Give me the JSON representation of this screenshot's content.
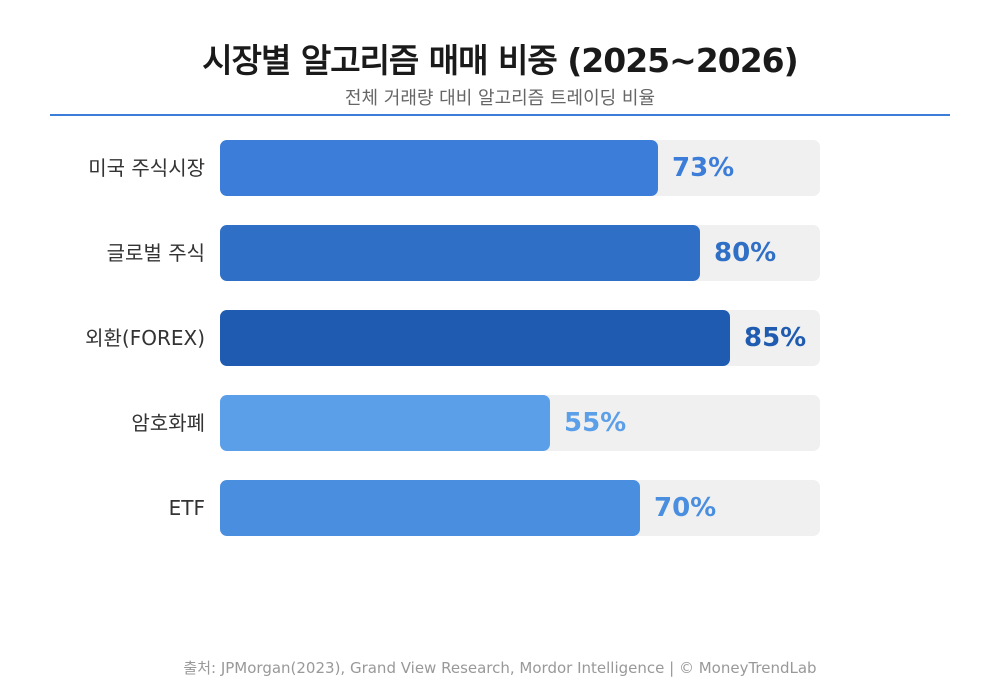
{
  "chart_data": {
    "type": "bar",
    "orientation": "horizontal",
    "title": "시장별 알고리즘 매매 비중 (2025~2026)",
    "subtitle": "전체 거래량 대비 알고리즘 트레이딩 비율",
    "categories": [
      "미국 주식시장",
      "글로벌 주식",
      "외환(FOREX)",
      "암호화폐",
      "ETF"
    ],
    "values": [
      73,
      80,
      85,
      55,
      70
    ],
    "labels": [
      "73%",
      "80%",
      "85%",
      "55%",
      "70%"
    ],
    "colors": [
      "#3b7dd8",
      "#2f6fc6",
      "#1f5bb0",
      "#5b9fe8",
      "#4a8fdf"
    ],
    "xlim": [
      0,
      100
    ],
    "xlabel": "",
    "ylabel": ""
  },
  "source": "출처: JPMorgan(2023), Grand View Research, Mordor Intelligence | © MoneyTrendLab"
}
